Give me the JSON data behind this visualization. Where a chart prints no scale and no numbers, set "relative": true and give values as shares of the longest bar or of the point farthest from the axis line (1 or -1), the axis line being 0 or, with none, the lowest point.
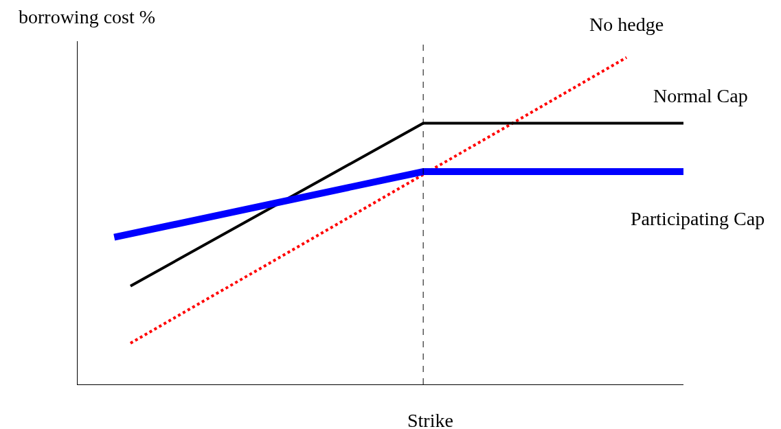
{
  "chart_data": {
    "type": "line",
    "relative": true,
    "ylabel": "borrowing cost %",
    "xlabel": "Strike",
    "categories": [
      null,
      null,
      null,
      null,
      null,
      null,
      null,
      null,
      null,
      null,
      null,
      null,
      null,
      null,
      null,
      null,
      null,
      null,
      null,
      null,
      null,
      null,
      null,
      null,
      null,
      null,
      null,
      null,
      null,
      null,
      null,
      null,
      null,
      null,
      null,
      null,
      null,
      null,
      null,
      null,
      null,
      null,
      null,
      null,
      null,
      null,
      null,
      null,
      null,
      null,
      null,
      null,
      null,
      null,
      null,
      null,
      null,
      null,
      null,
      null,
      null,
      null,
      null,
      null,
      null,
      null,
      null,
      null,
      null,
      null,
      null,
      null,
      null,
      null,
      null
    ],
    "legend": false,
    "marker": "none",
    "series": [
      {
        "name": "No hedge",
        "color": "#ff0000",
        "line_style": "dotted",
        "values": [
          null,
          null,
          null,
          null,
          null,
          null,
          0.126,
          null,
          null,
          null,
          null,
          null,
          null,
          null,
          null,
          null,
          null,
          null,
          null,
          null,
          null,
          null,
          null,
          null,
          null,
          null,
          null,
          null,
          null,
          null,
          null,
          null,
          null,
          null,
          null,
          null,
          null,
          null,
          null,
          null,
          null,
          null,
          null,
          null,
          null,
          null,
          null,
          null,
          null,
          null,
          null,
          null,
          null,
          null,
          null,
          null,
          null,
          null,
          null,
          null,
          null,
          null,
          null,
          null,
          null,
          null,
          null,
          1.0,
          null,
          null,
          null,
          null,
          null,
          null,
          null
        ]
      },
      {
        "name": "Normal Cap",
        "color": "#000000",
        "line_style": "solid",
        "values": [
          null,
          null,
          null,
          null,
          null,
          null,
          0.301,
          null,
          null,
          null,
          null,
          null,
          null,
          null,
          null,
          null,
          null,
          null,
          null,
          null,
          null,
          null,
          null,
          null,
          null,
          null,
          null,
          null,
          null,
          null,
          null,
          null,
          null,
          null,
          null,
          null,
          null,
          null,
          null,
          null,
          null,
          null,
          0.799,
          null,
          null,
          null,
          null,
          null,
          null,
          null,
          null,
          null,
          null,
          null,
          null,
          null,
          null,
          null,
          null,
          null,
          null,
          null,
          null,
          null,
          null,
          null,
          null,
          null,
          null,
          null,
          null,
          null,
          null,
          null,
          0.799
        ]
      },
      {
        "name": "Participating Cap",
        "color": "#0000ff",
        "line_style": "solid",
        "values": [
          null,
          null,
          null,
          null,
          0.45,
          null,
          null,
          null,
          null,
          null,
          null,
          null,
          null,
          null,
          null,
          null,
          null,
          null,
          null,
          null,
          null,
          null,
          null,
          null,
          null,
          null,
          null,
          null,
          null,
          null,
          null,
          null,
          null,
          null,
          null,
          null,
          null,
          null,
          null,
          null,
          null,
          null,
          0.651,
          null,
          null,
          null,
          null,
          null,
          null,
          null,
          null,
          null,
          null,
          null,
          null,
          null,
          null,
          null,
          null,
          null,
          null,
          null,
          null,
          null,
          null,
          null,
          null,
          null,
          null,
          null,
          null,
          null,
          null,
          null,
          0.651
        ]
      }
    ]
  }
}
